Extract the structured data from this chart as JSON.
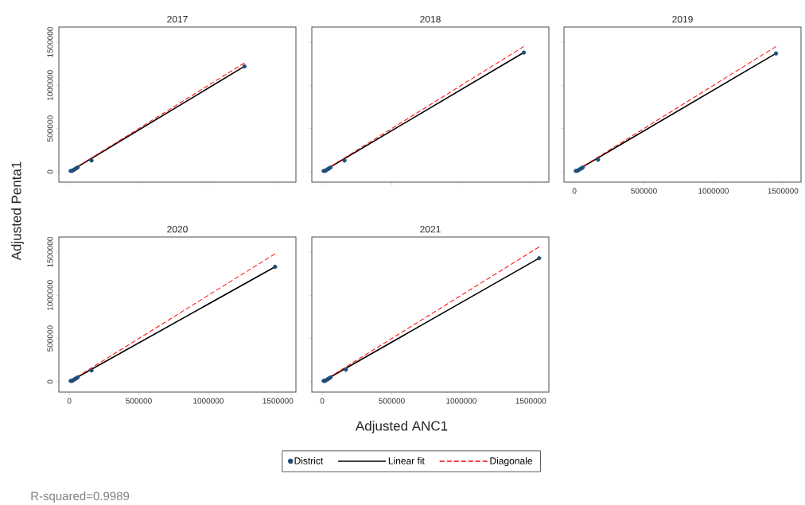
{
  "chart_data": [
    {
      "type": "scatter",
      "title": "2017",
      "ylabel": "Adjusted Penta1",
      "xlim": [
        -75000,
        1630000
      ],
      "ylim": [
        -120000,
        1675000
      ],
      "xticks": [
        0,
        500000,
        1000000,
        1500000
      ],
      "yticks": [
        0,
        500000,
        1000000,
        1500000
      ],
      "tick_labels": "y",
      "series": [
        {
          "marker": "circle",
          "color": "#1f4e79",
          "x": [
            10000,
            20000,
            30000,
            40000,
            50000,
            60000,
            160000,
            1260000
          ],
          "values": [
            10000,
            10000,
            20000,
            30000,
            40000,
            50000,
            130000,
            1220000
          ]
        },
        {
          "type": "line",
          "color": "#000000",
          "x": [
            0,
            1260000
          ],
          "values": [
            0,
            1220000
          ]
        },
        {
          "type": "line",
          "line_style": "dashed",
          "color": "#ff0000",
          "x": [
            0,
            1260000
          ],
          "values": [
            0,
            1260000
          ]
        }
      ]
    },
    {
      "type": "scatter",
      "title": "2018",
      "xlim": [
        -75000,
        1630000
      ],
      "ylim": [
        -120000,
        1675000
      ],
      "xticks": [
        0,
        500000,
        1000000,
        1500000
      ],
      "yticks": [
        0,
        500000,
        1000000,
        1500000
      ],
      "tick_labels": false,
      "series": [
        {
          "marker": "circle",
          "color": "#1f4e79",
          "x": [
            10000,
            20000,
            30000,
            40000,
            50000,
            60000,
            160000,
            1450000
          ],
          "values": [
            10000,
            10000,
            20000,
            30000,
            40000,
            50000,
            130000,
            1380000
          ]
        },
        {
          "type": "line",
          "color": "#000000",
          "x": [
            0,
            1450000
          ],
          "values": [
            0,
            1380000
          ]
        },
        {
          "type": "line",
          "line_style": "dashed",
          "color": "#ff0000",
          "x": [
            0,
            1450000
          ],
          "values": [
            0,
            1450000
          ]
        }
      ]
    },
    {
      "type": "scatter",
      "title": "2019",
      "xlim": [
        -75000,
        1630000
      ],
      "ylim": [
        -120000,
        1675000
      ],
      "xticks": [
        0,
        500000,
        1000000,
        1500000
      ],
      "yticks": [
        0,
        500000,
        1000000,
        1500000
      ],
      "tick_labels": "x",
      "series": [
        {
          "marker": "circle",
          "color": "#1f4e79",
          "x": [
            10000,
            20000,
            30000,
            40000,
            50000,
            60000,
            170000,
            1450000
          ],
          "values": [
            10000,
            10000,
            20000,
            30000,
            40000,
            50000,
            140000,
            1370000
          ]
        },
        {
          "type": "line",
          "color": "#000000",
          "x": [
            0,
            1450000
          ],
          "values": [
            0,
            1370000
          ]
        },
        {
          "type": "line",
          "line_style": "dashed",
          "color": "#ff0000",
          "x": [
            0,
            1450000
          ],
          "values": [
            0,
            1450000
          ]
        }
      ]
    },
    {
      "type": "scatter",
      "title": "2020",
      "xlabel": "Adjusted ANC1",
      "xlim": [
        -75000,
        1630000
      ],
      "ylim": [
        -120000,
        1675000
      ],
      "xticks": [
        0,
        500000,
        1000000,
        1500000
      ],
      "yticks": [
        0,
        500000,
        1000000,
        1500000
      ],
      "series": [
        {
          "marker": "circle",
          "color": "#1f4e79",
          "x": [
            10000,
            20000,
            30000,
            40000,
            50000,
            60000,
            160000,
            1480000
          ],
          "values": [
            10000,
            10000,
            20000,
            30000,
            40000,
            50000,
            130000,
            1330000
          ]
        },
        {
          "type": "line",
          "color": "#000000",
          "x": [
            0,
            1480000
          ],
          "values": [
            0,
            1330000
          ]
        },
        {
          "type": "line",
          "line_style": "dashed",
          "color": "#ff0000",
          "x": [
            0,
            1480000
          ],
          "values": [
            0,
            1480000
          ]
        }
      ]
    },
    {
      "type": "scatter",
      "title": "2021",
      "xlim": [
        -75000,
        1630000
      ],
      "ylim": [
        -120000,
        1675000
      ],
      "xticks": [
        0,
        500000,
        1000000,
        1500000
      ],
      "yticks": [
        0,
        500000,
        1000000,
        1500000
      ],
      "tick_labels": "x",
      "legend": "bottom",
      "annotations": [
        "R-squared=0.9989"
      ],
      "series": [
        {
          "name": "District",
          "marker": "circle",
          "color": "#1f4e79",
          "x": [
            10000,
            20000,
            30000,
            40000,
            50000,
            60000,
            170000,
            1560000
          ],
          "values": [
            10000,
            10000,
            20000,
            30000,
            40000,
            50000,
            140000,
            1430000
          ]
        },
        {
          "name": "Linear fit",
          "type": "line",
          "color": "#000000",
          "x": [
            0,
            1560000
          ],
          "values": [
            0,
            1430000
          ]
        },
        {
          "name": "Diagonale",
          "type": "line",
          "line_style": "dashed",
          "color": "#ff0000",
          "x": [
            0,
            1560000
          ],
          "values": [
            0,
            1560000
          ]
        }
      ]
    }
  ]
}
